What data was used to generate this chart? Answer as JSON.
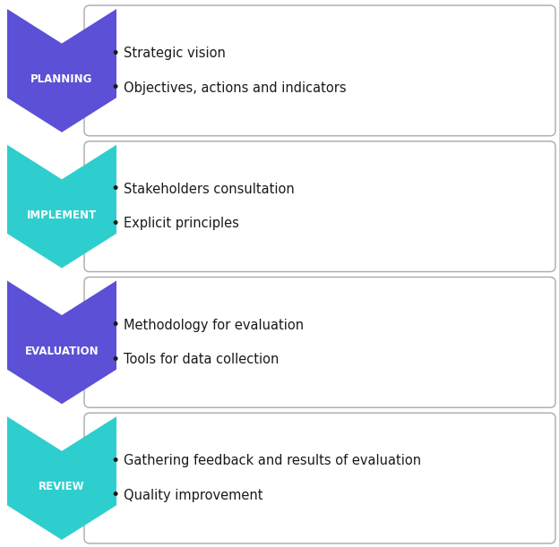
{
  "rows": [
    {
      "label": "PLANNING",
      "bullets": [
        "Strategic vision",
        "Objectives, actions and indicators"
      ],
      "arrow_color": "#5B50D6",
      "box_color": "#FFFFFF"
    },
    {
      "label": "IMPLEMENT",
      "bullets": [
        "Stakeholders consultation",
        "Explicit principles"
      ],
      "arrow_color": "#2ECECE",
      "box_color": "#FFFFFF"
    },
    {
      "label": "EVALUATION",
      "bullets": [
        "Methodology for evaluation",
        "Tools for data collection"
      ],
      "arrow_color": "#5B50D6",
      "box_color": "#FFFFFF"
    },
    {
      "label": "REVIEW",
      "bullets": [
        "Gathering feedback and results of evaluation",
        "Quality improvement"
      ],
      "arrow_color": "#2ECECE",
      "box_color": "#FFFFFF"
    }
  ],
  "bg_color": "#FFFFFF",
  "label_text_color": "#FFFFFF",
  "bullet_text_color": "#1A1A1A",
  "label_fontsize": 8.5,
  "bullet_fontsize": 10.5,
  "fig_width": 6.24,
  "fig_height": 6.11
}
